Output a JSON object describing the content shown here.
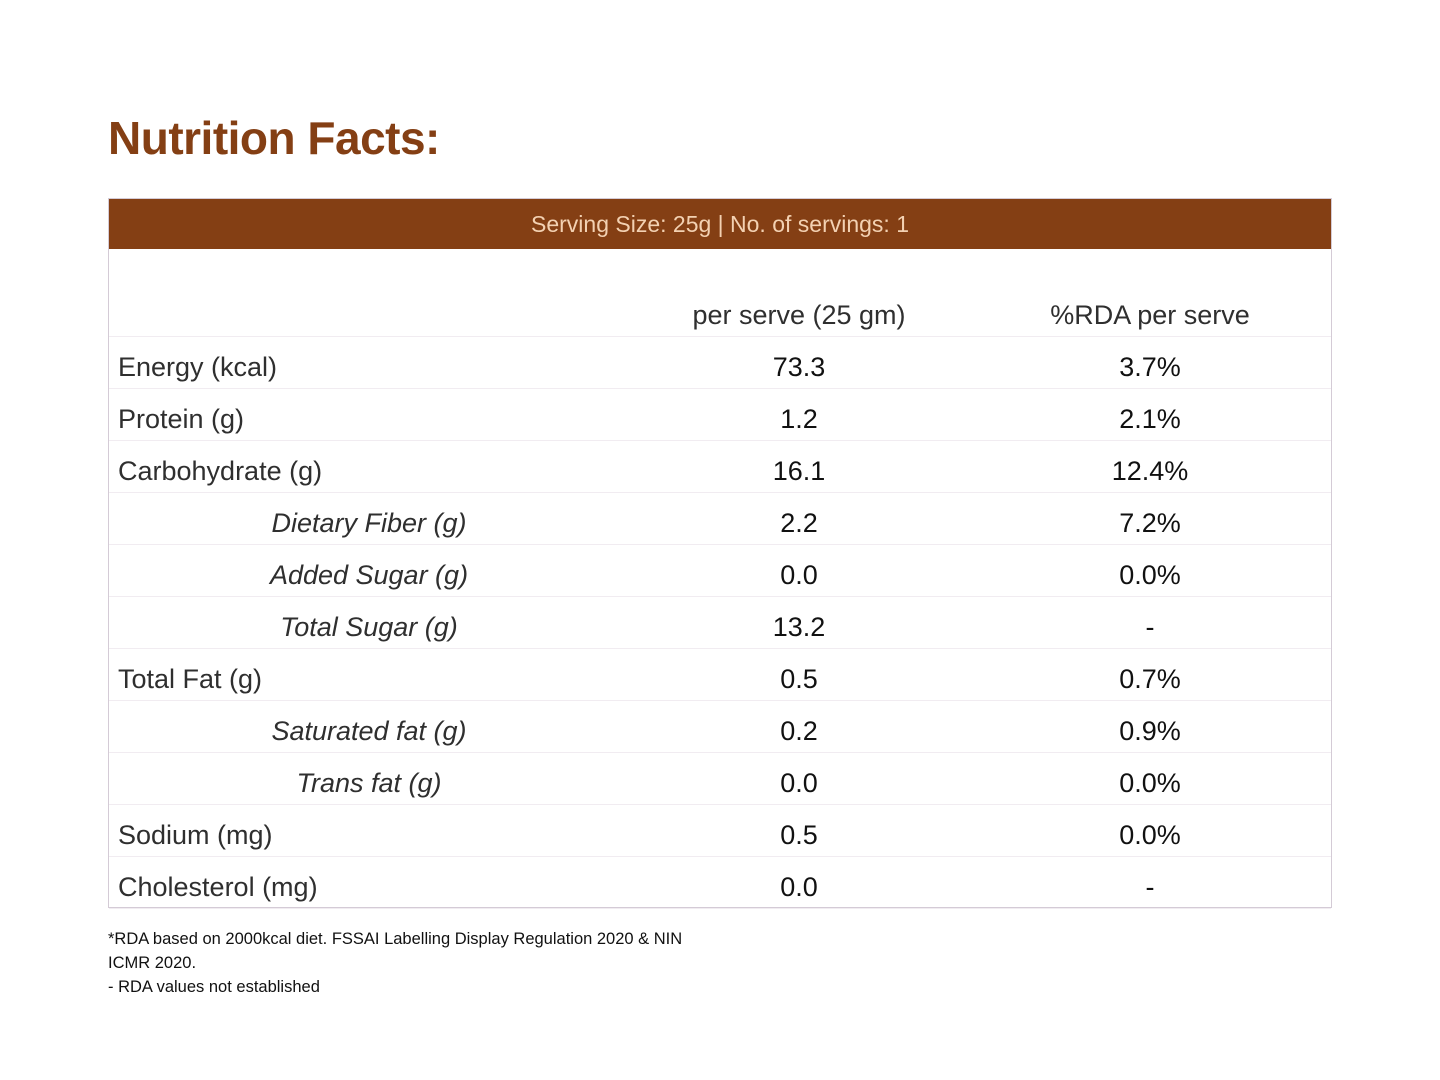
{
  "title": "Nutrition Facts:",
  "serving_band": "Serving Size: 25g | No. of servings: 1",
  "columns": {
    "per_serve": "per serve (25 gm)",
    "rda": "%RDA per serve"
  },
  "rows": [
    {
      "name": "Energy (kcal)",
      "value": "73.3",
      "rda": "3.7%",
      "sub": false
    },
    {
      "name": "Protein (g)",
      "value": "1.2",
      "rda": "2.1%",
      "sub": false
    },
    {
      "name": "Carbohydrate (g)",
      "value": "16.1",
      "rda": "12.4%",
      "sub": false
    },
    {
      "name": "Dietary Fiber (g)",
      "value": "2.2",
      "rda": "7.2%",
      "sub": true
    },
    {
      "name": "Added Sugar (g)",
      "value": "0.0",
      "rda": "0.0%",
      "sub": true
    },
    {
      "name": "Total Sugar (g)",
      "value": "13.2",
      "rda": "-",
      "sub": true
    },
    {
      "name": "Total Fat (g)",
      "value": "0.5",
      "rda": "0.7%",
      "sub": false
    },
    {
      "name": "Saturated fat (g)",
      "value": "0.2",
      "rda": "0.9%",
      "sub": true
    },
    {
      "name": "Trans fat (g)",
      "value": "0.0",
      "rda": "0.0%",
      "sub": true
    },
    {
      "name": "Sodium (mg)",
      "value": "0.5",
      "rda": "0.0%",
      "sub": false
    },
    {
      "name": "Cholesterol (mg)",
      "value": "0.0",
      "rda": "-",
      "sub": false
    }
  ],
  "footnotes": {
    "rda_basis_line1": "*RDA based on 2000kcal diet. FSSAI Labelling Display Regulation 2020 & NIN",
    "rda_basis_line2": "ICMR 2020.",
    "not_established": "- RDA values not established"
  },
  "colors": {
    "accent": "#843f14",
    "band_text": "#f3d1b2"
  }
}
